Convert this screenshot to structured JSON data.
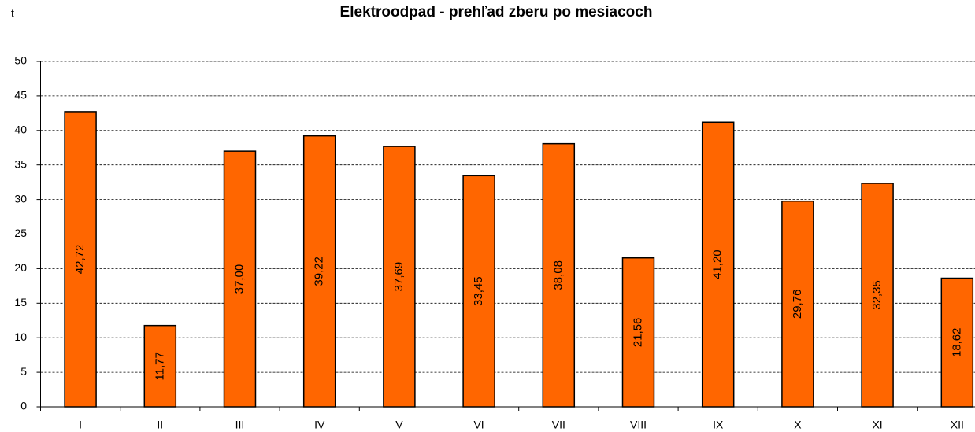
{
  "chart_data": {
    "type": "bar",
    "title": "Elektroodpad - prehľad zberu po mesiacoch",
    "y_label": "t",
    "categories": [
      "I",
      "II",
      "III",
      "IV",
      "V",
      "VI",
      "VII",
      "VIII",
      "IX",
      "X",
      "XI",
      "XII"
    ],
    "values": [
      42.72,
      11.77,
      37,
      39.22,
      37.69,
      33.45,
      38.08,
      21.56,
      41.2,
      29.76,
      32.35,
      18.62
    ],
    "value_labels": [
      "42,72",
      "11,77",
      "37,00",
      "39,22",
      "37,69",
      "33,45",
      "38,08",
      "21,56",
      "41,20",
      "29,76",
      "32,35",
      "18,62"
    ],
    "color": "#ff6600",
    "ylim": [
      0,
      50
    ],
    "yticks": [
      0,
      5,
      10,
      15,
      20,
      25,
      30,
      35,
      40,
      45,
      50
    ],
    "grid": true
  }
}
